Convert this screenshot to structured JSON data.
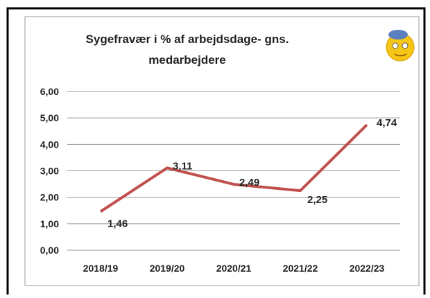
{
  "chart_data": {
    "type": "line",
    "title": [
      "Sygefravær i % af arbejdsdage- gns.",
      "medarbejdere"
    ],
    "categories": [
      "2018/19",
      "2019/20",
      "2020/21",
      "2021/22",
      "2022/23"
    ],
    "series": [
      {
        "color": "#c0504d",
        "values": [
          1.46,
          3.11,
          2.49,
          2.25,
          4.74
        ],
        "value_labels": [
          "1,46",
          "3,11",
          "2,49",
          "2,25",
          "4,74"
        ]
      }
    ],
    "ylim": [
      0,
      6
    ],
    "yticks": [
      {
        "value": 0,
        "label": "0,00"
      },
      {
        "value": 1,
        "label": "1,00"
      },
      {
        "value": 2,
        "label": "2,00"
      },
      {
        "value": 3,
        "label": "3,00"
      },
      {
        "value": 4,
        "label": "4,00"
      },
      {
        "value": 5,
        "label": "5,00"
      },
      {
        "value": 6,
        "label": "6,00"
      }
    ],
    "grid": true
  }
}
